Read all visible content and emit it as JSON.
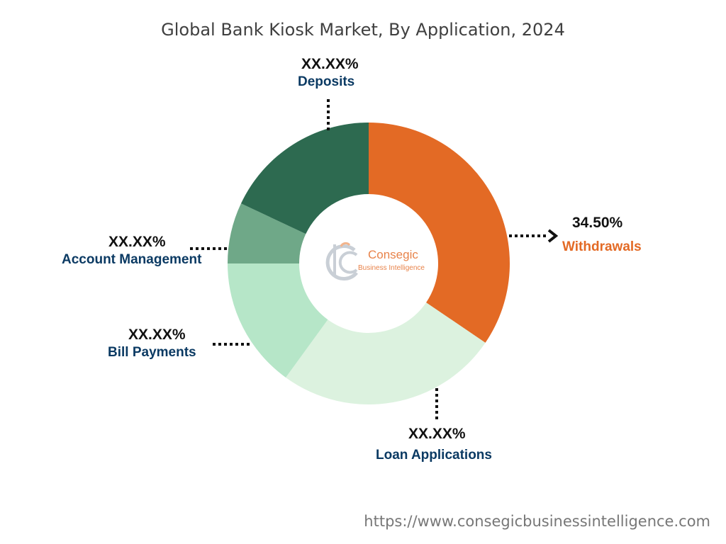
{
  "chart_data": {
    "type": "pie",
    "title": "Global Bank Kiosk Market, By Application, 2024",
    "categories": [
      "Withdrawals",
      "Loan Applications",
      "Bill Payments",
      "Account Management",
      "Deposits"
    ],
    "values": [
      34.5,
      25.5,
      15.0,
      7.0,
      18.0
    ],
    "value_labels": [
      "34.50%",
      "XX.XX%",
      "XX.XX%",
      "XX.XX%",
      "XX.XX%"
    ],
    "colors": [
      "#e36a25",
      "#dcf2df",
      "#b6e6c8",
      "#6fa888",
      "#2d6a50"
    ],
    "label_color": "#0b3a63",
    "highlight_color": "#e36a25",
    "donut": true
  },
  "watermark": {
    "name": "Consegic",
    "tagline": "Business Intelligence"
  },
  "footer": {
    "url": "https://www.consegicbusinessintelligence.com"
  }
}
